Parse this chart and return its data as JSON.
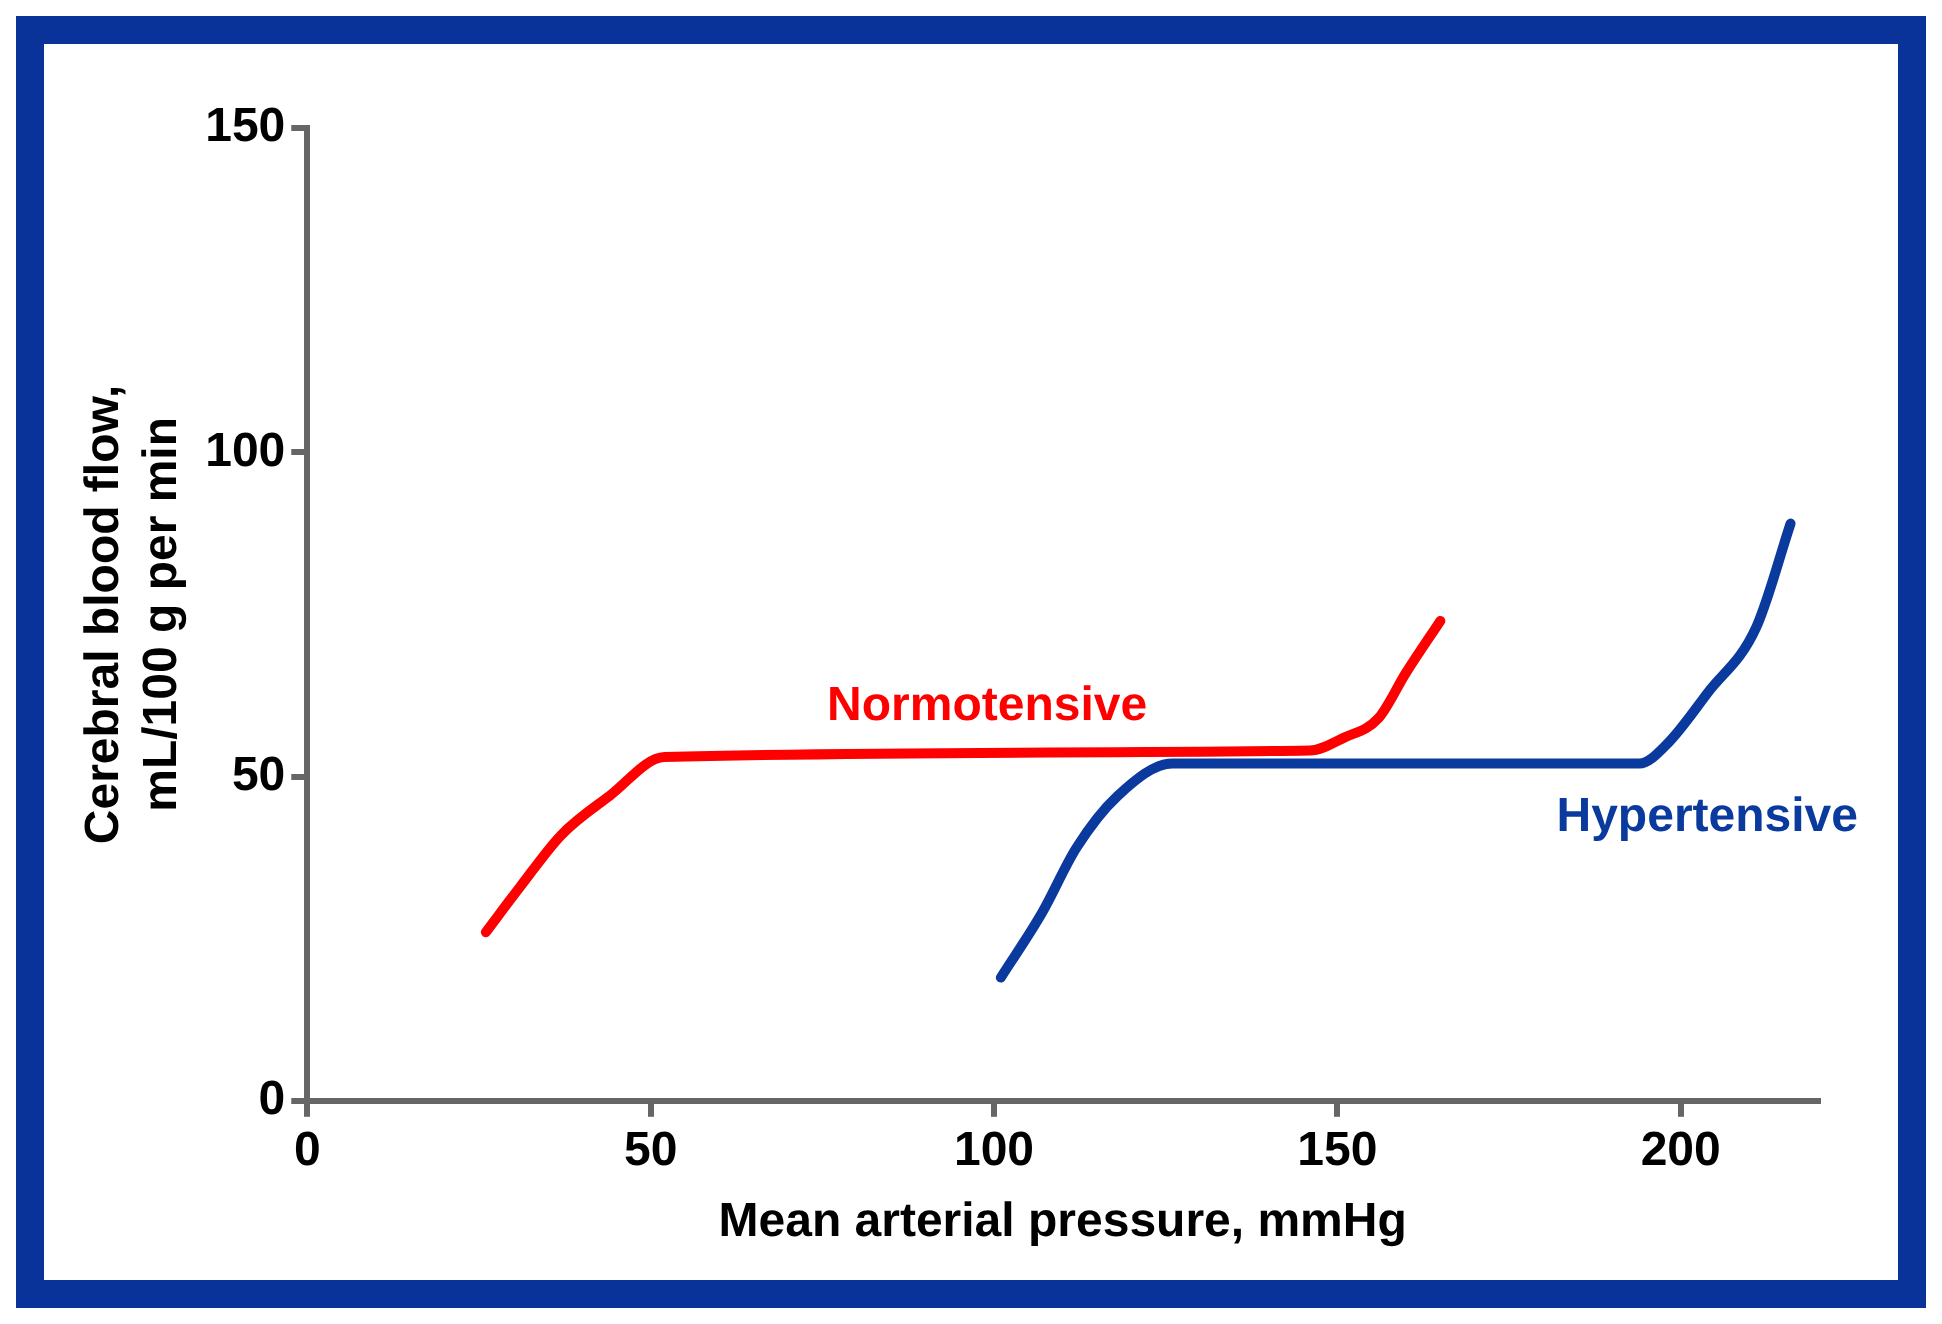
{
  "chart_data": {
    "type": "line",
    "xlabel": "Mean arterial pressure, mmHg",
    "ylabel": "Cerebral blood flow,\nmL/100 g per min",
    "xlim": [
      0,
      220
    ],
    "xticks": [
      0,
      50,
      100,
      150,
      200
    ],
    "ylim": [
      0,
      150
    ],
    "yticks": [
      0,
      50,
      100,
      150
    ],
    "grid": false,
    "legend": false,
    "marker": "none",
    "line_style": "solid",
    "series": [
      {
        "name": "Normotensive",
        "color": "#ff0000",
        "x": [
          26,
          31,
          37,
          44,
          52,
          146,
          151,
          156,
          160,
          165
        ],
        "values": [
          26,
          33,
          41,
          47,
          53,
          54,
          56,
          59,
          66,
          74
        ]
      },
      {
        "name": "Hypertensive",
        "color": "#0a3a9e",
        "x": [
          101,
          107,
          112,
          118,
          126,
          194,
          198,
          204,
          211,
          216
        ],
        "values": [
          19,
          29,
          39,
          47,
          52,
          52,
          55,
          63,
          73,
          89
        ]
      }
    ]
  }
}
